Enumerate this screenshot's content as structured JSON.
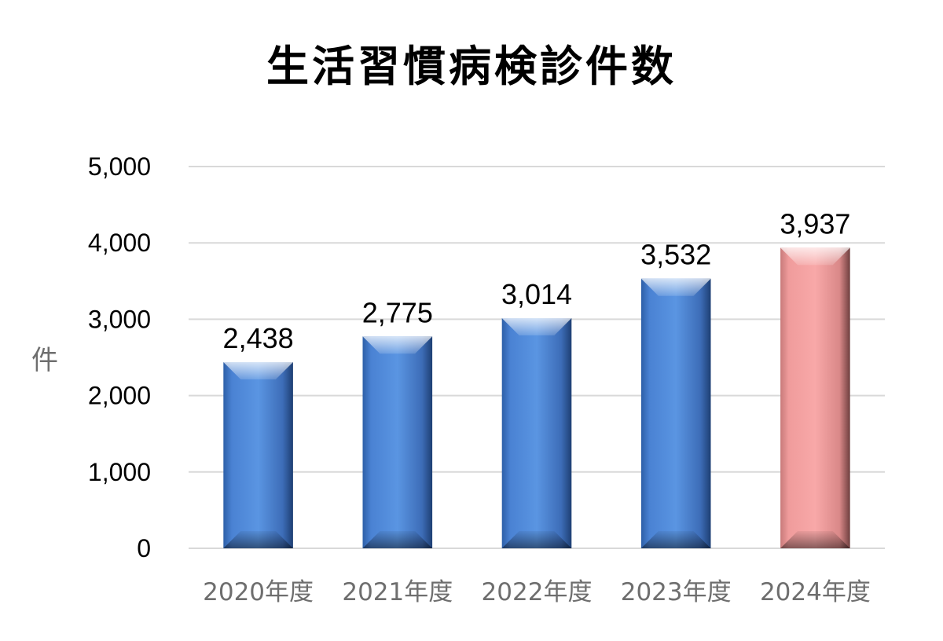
{
  "chart_data": {
    "type": "bar",
    "title": "生活習慣病検診件数",
    "ylabel": "件",
    "xlabel": "",
    "categories": [
      "2020年度",
      "2021年度",
      "2022年度",
      "2023年度",
      "2024年度"
    ],
    "values": [
      2438,
      2775,
      3014,
      3532,
      3937
    ],
    "data_labels": [
      "2,438",
      "2,775",
      "3,014",
      "3,532",
      "3,937"
    ],
    "ylim": [
      0,
      5000
    ],
    "yticks": [
      0,
      1000,
      2000,
      3000,
      4000,
      5000
    ],
    "ytick_labels": [
      "0",
      "1,000",
      "2,000",
      "3,000",
      "4,000",
      "5,000"
    ],
    "grid": true,
    "legend": "none",
    "colors": {
      "default_bar": "#4f86d6",
      "highlight_bar": "#f4a3a3",
      "highlight_index": 4,
      "grid": "#d9d9d9"
    }
  }
}
